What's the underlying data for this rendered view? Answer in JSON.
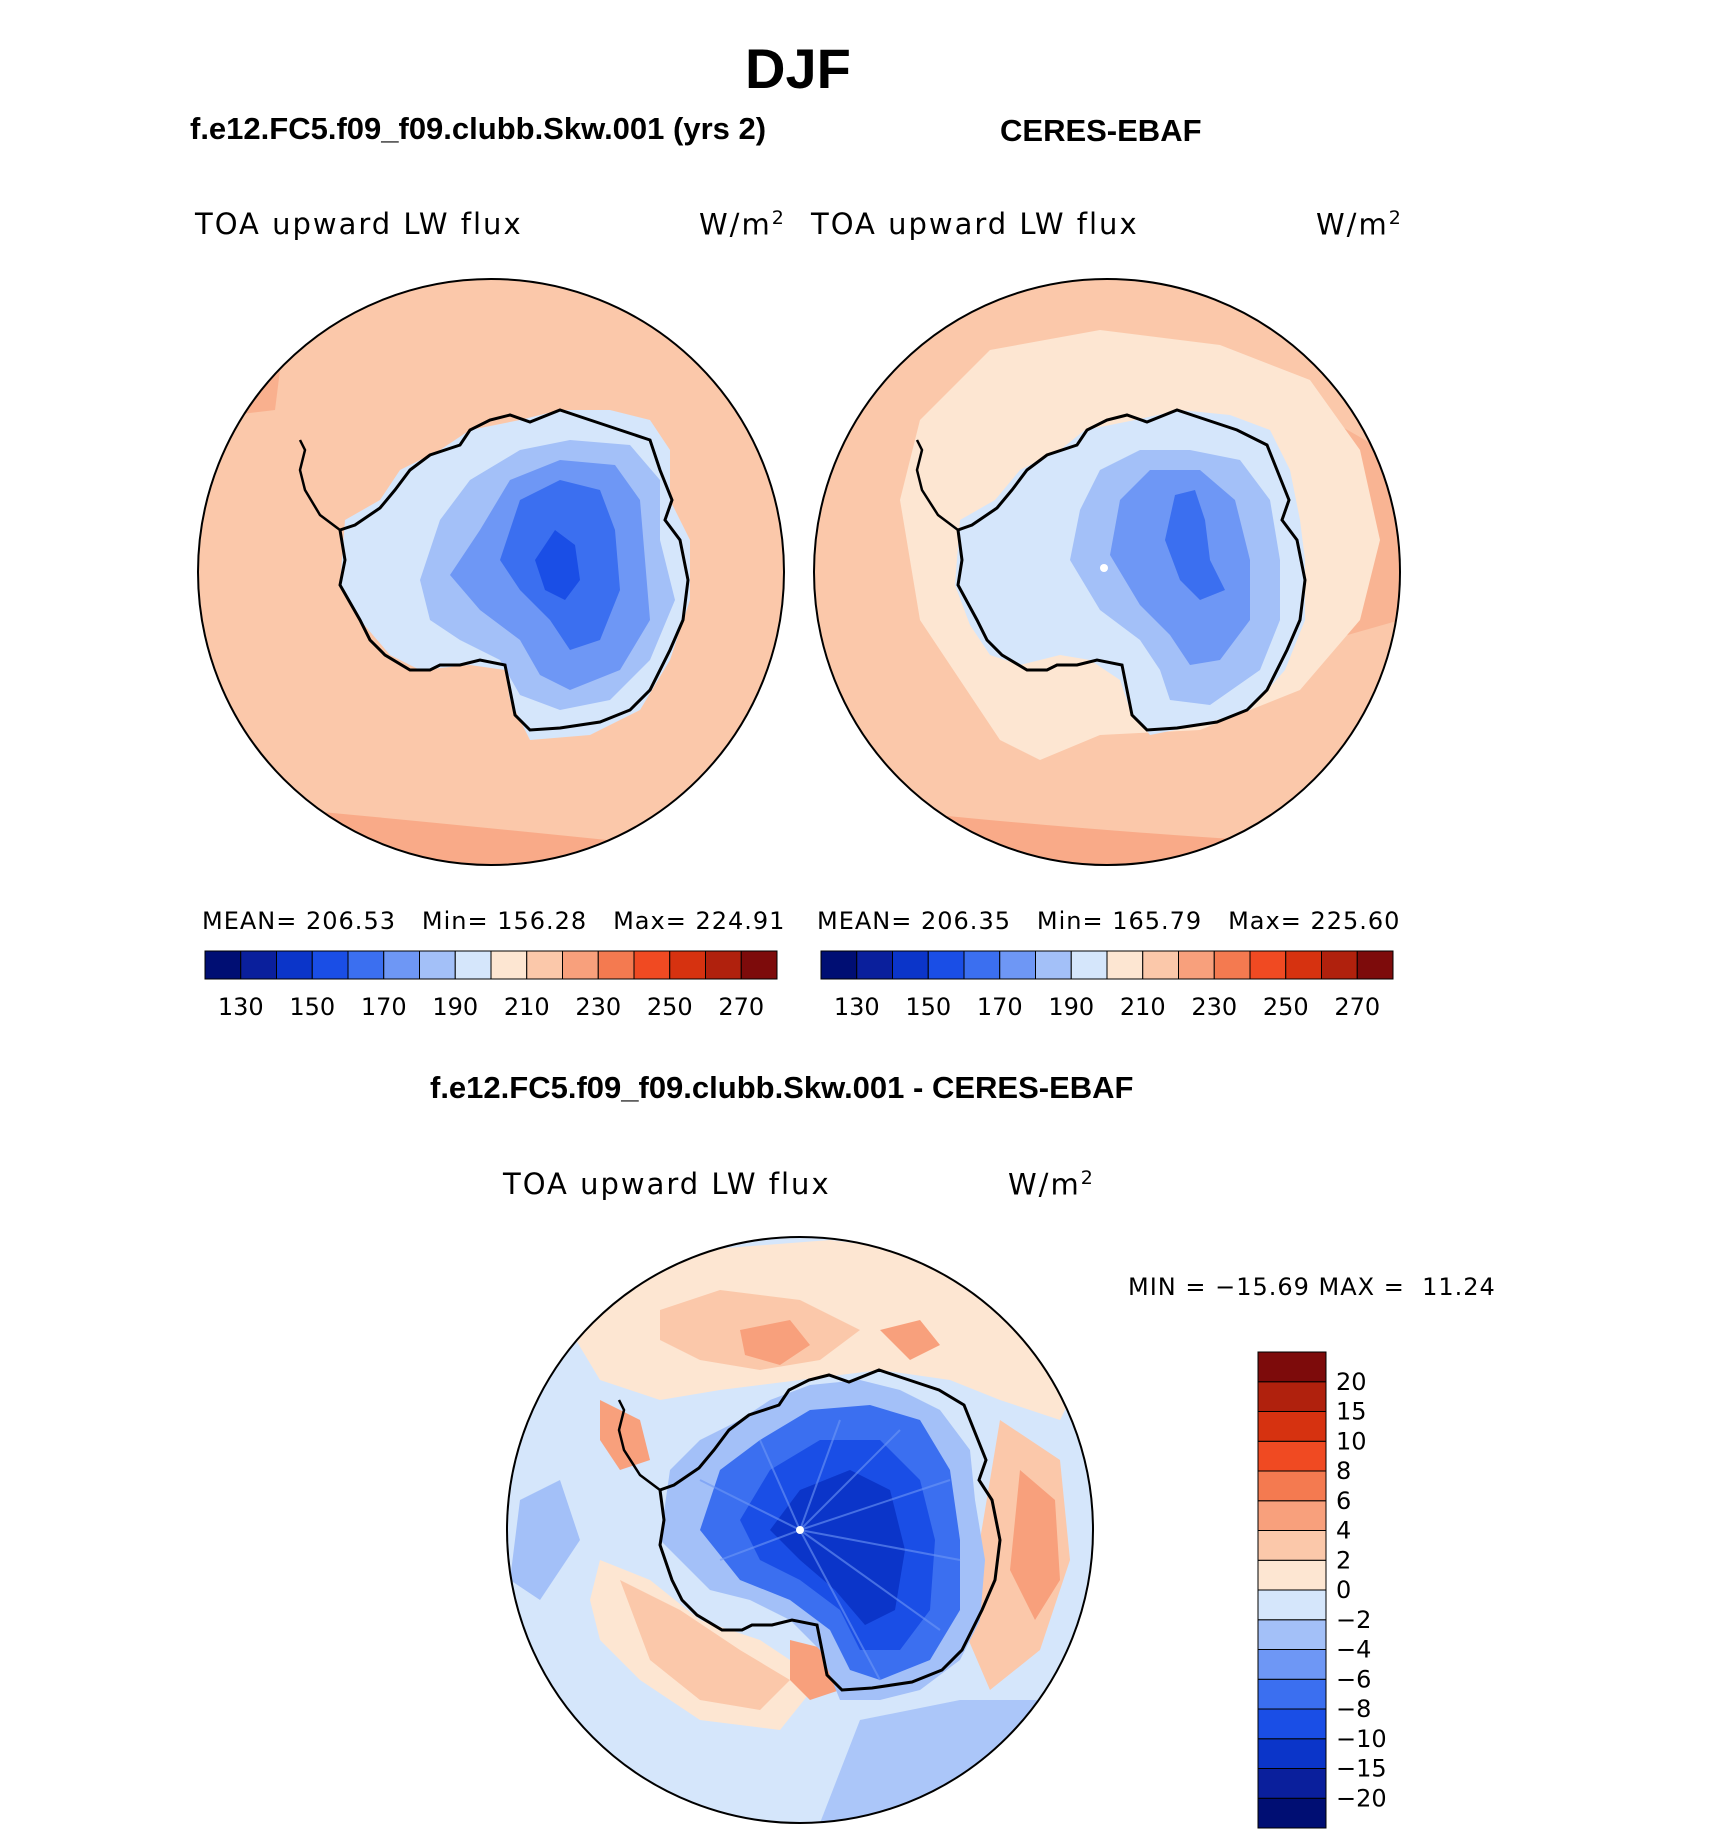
{
  "title": "DJF",
  "panels": {
    "model": {
      "title": "f.e12.FC5.f09_f09.clubb.Skw.001 (yrs 2)",
      "field_label": "TOA upward LW flux",
      "units": "W/m",
      "units_sup": "2",
      "stats": {
        "mean_label": "MEAN=",
        "mean": "206.53",
        "min_label": "Min=",
        "min": "156.28",
        "max_label": "Max=",
        "max": "224.91"
      }
    },
    "obs": {
      "title": "CERES-EBAF",
      "field_label": "TOA upward LW flux",
      "units": "W/m",
      "units_sup": "2",
      "stats": {
        "mean_label": "MEAN=",
        "mean": "206.35",
        "min_label": "Min=",
        "min": "165.79",
        "max_label": "Max=",
        "max": "225.60"
      }
    },
    "diff": {
      "title": "f.e12.FC5.f09_f09.clubb.Skw.001 - CERES-EBAF",
      "field_label": "TOA upward LW flux",
      "units": "W/m",
      "units_sup": "2",
      "stats_text": "MIN = −15.69 MAX =  11.24"
    }
  },
  "chart_data": [
    {
      "type": "heatmap",
      "projection": "south-polar-stereographic",
      "title": "f.e12.FC5.f09_f09.clubb.Skw.001 (yrs 2)",
      "field": "TOA upward LW flux",
      "units": "W/m2",
      "mean": 206.53,
      "min": 156.28,
      "max": 224.91,
      "colorbar": {
        "orientation": "horizontal",
        "levels": [
          130,
          140,
          150,
          160,
          170,
          180,
          190,
          200,
          210,
          220,
          230,
          240,
          250,
          260,
          270
        ],
        "tick_labels": [
          "130",
          "150",
          "170",
          "190",
          "210",
          "230",
          "250",
          "270"
        ],
        "colors": [
          "#000e73",
          "#0a1f9c",
          "#0b35c9",
          "#1a4ee6",
          "#3b6ff0",
          "#6e97f5",
          "#a3c0f8",
          "#d5e6fb",
          "#fde6d2",
          "#fbc8aa",
          "#f8a07c",
          "#f47a50",
          "#f04a22",
          "#d63210",
          "#b0210d",
          "#7d0b0b"
        ]
      }
    },
    {
      "type": "heatmap",
      "projection": "south-polar-stereographic",
      "title": "CERES-EBAF",
      "field": "TOA upward LW flux",
      "units": "W/m2",
      "mean": 206.35,
      "min": 165.79,
      "max": 225.6,
      "colorbar": {
        "orientation": "horizontal",
        "levels": [
          130,
          140,
          150,
          160,
          170,
          180,
          190,
          200,
          210,
          220,
          230,
          240,
          250,
          260,
          270
        ],
        "tick_labels": [
          "130",
          "150",
          "170",
          "190",
          "210",
          "230",
          "250",
          "270"
        ],
        "colors": [
          "#000e73",
          "#0a1f9c",
          "#0b35c9",
          "#1a4ee6",
          "#3b6ff0",
          "#6e97f5",
          "#a3c0f8",
          "#d5e6fb",
          "#fde6d2",
          "#fbc8aa",
          "#f8a07c",
          "#f47a50",
          "#f04a22",
          "#d63210",
          "#b0210d",
          "#7d0b0b"
        ]
      }
    },
    {
      "type": "heatmap",
      "projection": "south-polar-stereographic",
      "title": "f.e12.FC5.f09_f09.clubb.Skw.001 - CERES-EBAF",
      "field": "TOA upward LW flux",
      "units": "W/m2",
      "min": -15.69,
      "max": 11.24,
      "colorbar": {
        "orientation": "vertical",
        "levels": [
          -20,
          -15,
          -10,
          -8,
          -6,
          -4,
          -2,
          0,
          2,
          4,
          6,
          8,
          10,
          15,
          20
        ],
        "tick_labels": [
          "−20",
          "−15",
          "−10",
          "−8",
          "−6",
          "−4",
          "−2",
          "0",
          "2",
          "4",
          "6",
          "8",
          "10",
          "15",
          "20"
        ],
        "colors": [
          "#000e73",
          "#0a1f9c",
          "#0b35c9",
          "#1a4ee6",
          "#3b6ff0",
          "#6e97f5",
          "#a3c0f8",
          "#d5e6fb",
          "#fde6d2",
          "#fbc8aa",
          "#f8a07c",
          "#f47a50",
          "#f04a22",
          "#d63210",
          "#b0210d",
          "#7d0b0b"
        ]
      }
    }
  ]
}
